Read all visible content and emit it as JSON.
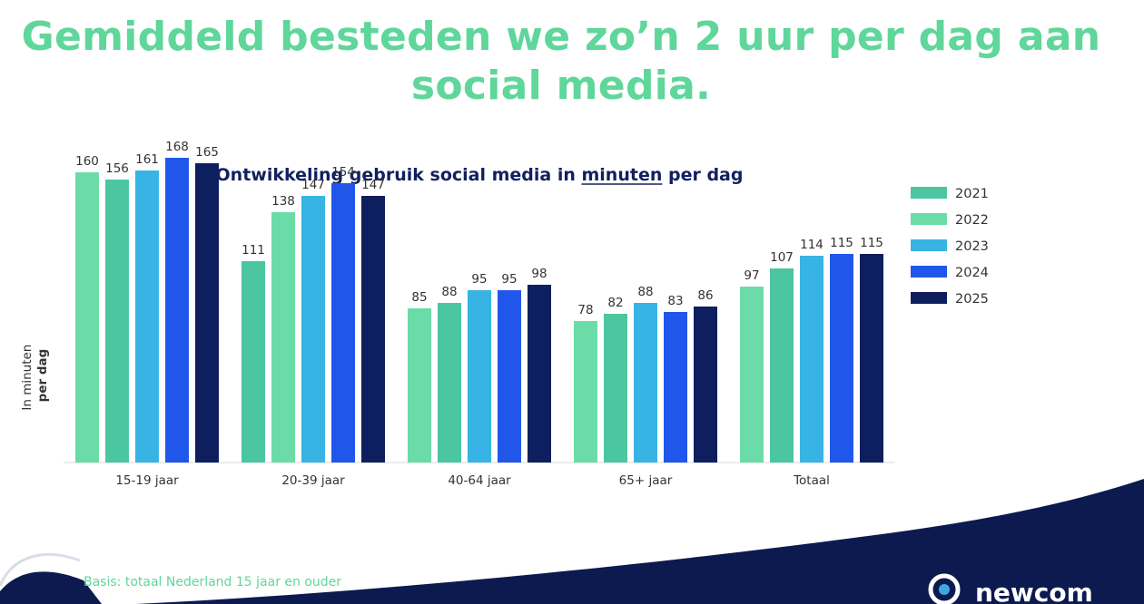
{
  "headline": "Gemiddeld besteden we zo’n 2 uur per dag aan social media.",
  "footer": {
    "basis": "Basis: totaal Nederland 15 jaar en ouder",
    "logo_text": "newcom"
  },
  "colors": {
    "headline": "#5fd69a",
    "title": "#12205e",
    "footer_wave": "#0c1a4f"
  },
  "chart_data": {
    "type": "bar",
    "title_parts": [
      {
        "text": "Ontwikkeling gebruik social media in ",
        "underline": false
      },
      {
        "text": "minuten",
        "underline": true
      },
      {
        "text": " per dag",
        "underline": false
      }
    ],
    "ylabel_lines": [
      "In minuten",
      "per dag"
    ],
    "categories": [
      "15-19 jaar",
      "20-39 jaar",
      "40-64 jaar",
      "65+ jaar",
      "Totaal"
    ],
    "series": [
      {
        "name": "2021",
        "values": [
          160,
          111,
          85,
          78,
          97
        ]
      },
      {
        "name": "2022",
        "values": [
          156,
          138,
          88,
          82,
          107
        ]
      },
      {
        "name": "2023",
        "values": [
          161,
          147,
          95,
          88,
          114
        ]
      },
      {
        "name": "2024",
        "values": [
          168,
          154,
          95,
          83,
          115
        ]
      },
      {
        "name": "2025",
        "values": [
          165,
          147,
          98,
          86,
          115
        ]
      }
    ],
    "bar_colors_by_position": [
      [
        "#6bdca7",
        "#4bc6a1",
        "#37b4e4",
        "#2156eb",
        "#0d1f5e"
      ],
      [
        "#4bc6a1",
        "#6bdca7",
        "#37b4e4",
        "#2156eb",
        "#0d1f5e"
      ],
      [
        "#6bdca7",
        "#4bc6a1",
        "#37b4e4",
        "#2156eb",
        "#0d1f5e"
      ],
      [
        "#6bdca7",
        "#4bc6a1",
        "#37b4e4",
        "#2156eb",
        "#0d1f5e"
      ],
      [
        "#6bdca7",
        "#4bc6a1",
        "#37b4e4",
        "#2156eb",
        "#0d1f5e"
      ]
    ],
    "legend_colors": [
      "#4bc6a1",
      "#6bdca7",
      "#37b4e4",
      "#2156eb",
      "#0d1f5e"
    ],
    "ylim": [
      0,
      200
    ],
    "grid": false,
    "legend_position": "top-right"
  }
}
